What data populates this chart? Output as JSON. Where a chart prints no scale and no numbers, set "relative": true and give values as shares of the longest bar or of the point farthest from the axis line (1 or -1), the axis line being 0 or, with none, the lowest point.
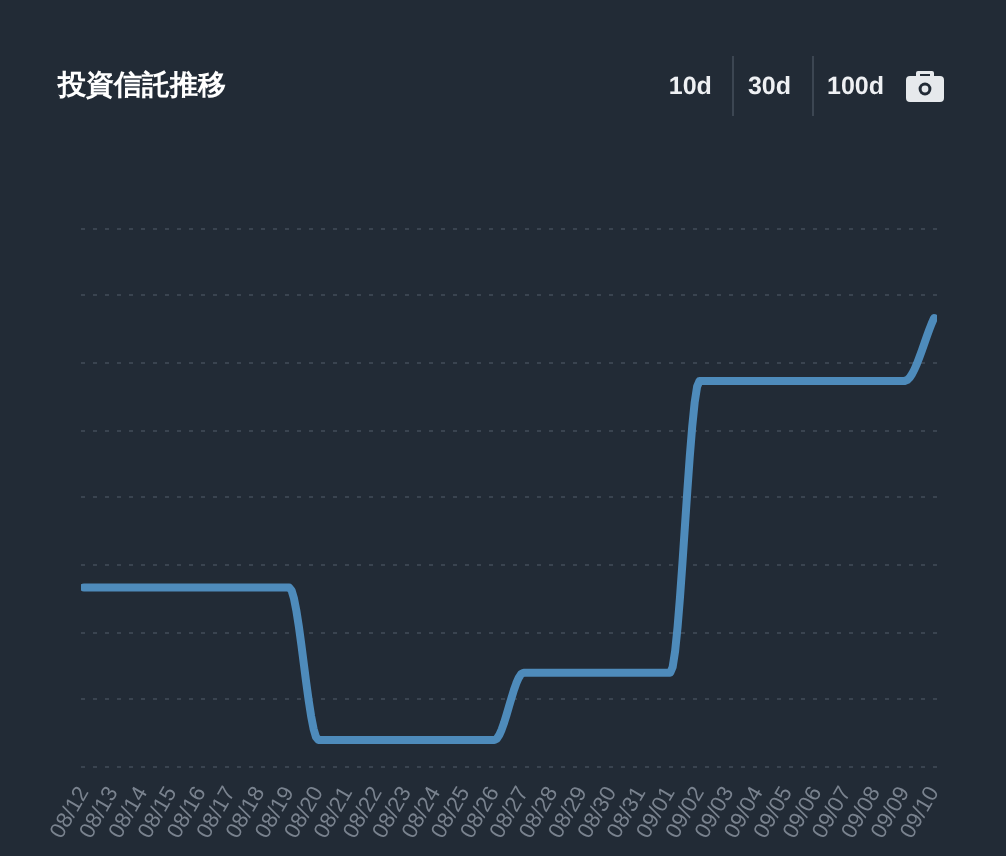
{
  "chart_data": {
    "type": "line",
    "title": "投資信託推移",
    "annotations": [
      "10d",
      "30d",
      "100d"
    ],
    "categories": [
      "08/12",
      "08/13",
      "08/14",
      "08/15",
      "08/16",
      "08/17",
      "08/18",
      "08/19",
      "08/20",
      "08/21",
      "08/22",
      "08/23",
      "08/24",
      "08/25",
      "08/26",
      "08/27",
      "08/28",
      "08/29",
      "08/30",
      "08/31",
      "09/01",
      "09/02",
      "09/03",
      "09/04",
      "09/05",
      "09/06",
      "09/07",
      "09/08",
      "09/09",
      "09/10"
    ],
    "series": [
      {
        "color": "#4e8bbb",
        "values": [
          0.4,
          0.4,
          0.4,
          0.4,
          0.4,
          0.4,
          0.4,
          0.4,
          0.06,
          0.06,
          0.06,
          0.06,
          0.06,
          0.06,
          0.06,
          0.21,
          0.21,
          0.21,
          0.21,
          0.21,
          0.21,
          0.86,
          0.86,
          0.86,
          0.86,
          0.86,
          0.86,
          0.86,
          0.86,
          1
        ]
      }
    ],
    "relative": true,
    "grid": "y",
    "tick_labels": "x"
  }
}
